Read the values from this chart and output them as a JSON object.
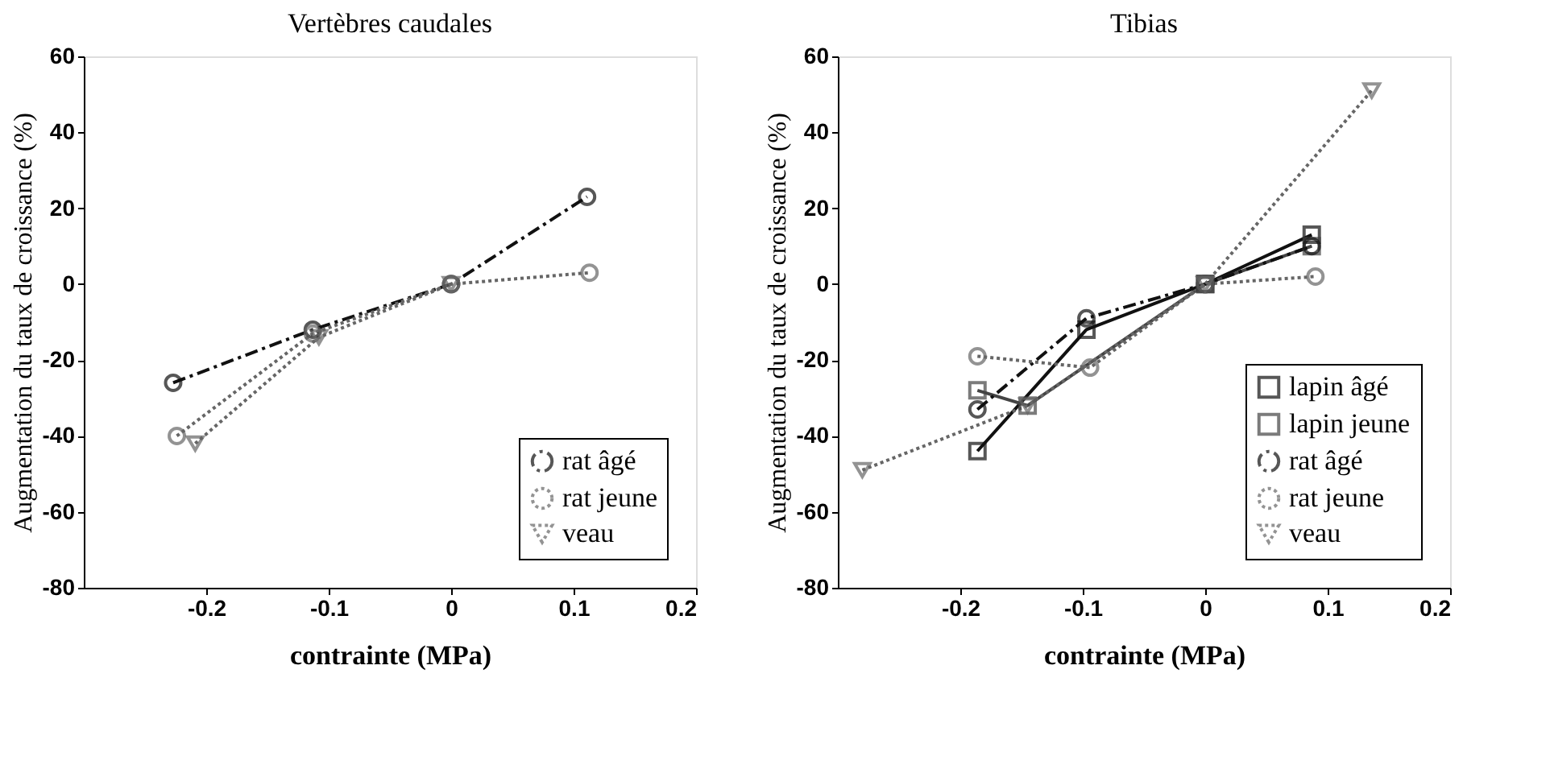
{
  "chart_data": [
    {
      "type": "line",
      "title": "Vertèbres caudales",
      "xlabel": "contrainte (MPa)",
      "ylabel": "Augmentation du taux de croissance (%)",
      "xlim": [
        -0.3,
        0.2
      ],
      "xticks": [
        {
          "value": -0.2,
          "label": "-0.2"
        },
        {
          "value": -0.1,
          "label": "-0.1"
        },
        0,
        {
          "value": 0.1,
          "label": "0.1"
        },
        {
          "value": 0.2,
          "label": "0.2"
        }
      ],
      "ylim": [
        -80,
        60
      ],
      "yticks": [
        -80,
        -60,
        -40,
        -20,
        0,
        20,
        40,
        60
      ],
      "grid": false,
      "legend": "bottom right",
      "series": [
        {
          "name": "rat âgé",
          "color": "#111111",
          "marker": "circle",
          "line_style": "dashed",
          "x": [
            -0.227,
            -0.113,
            0,
            0.111
          ],
          "values": [
            -26,
            -12,
            0,
            23
          ]
        },
        {
          "name": "rat jeune",
          "color": "#666666",
          "marker": "circle",
          "line_style": "dotted",
          "x": [
            -0.224,
            -0.113,
            0,
            0.113
          ],
          "values": [
            -40,
            -13,
            0,
            3
          ]
        },
        {
          "name": "veau",
          "color": "#666666",
          "marker": "triangle",
          "line_style": "dotted",
          "x": [
            -0.209,
            -0.108,
            0
          ],
          "values": [
            -42,
            -14,
            0
          ]
        }
      ]
    },
    {
      "type": "line",
      "title": "Tibias",
      "xlabel": "contrainte (MPa)",
      "ylabel": "Augmentation du taux de croissance (%)",
      "xlim": [
        -0.3,
        0.2
      ],
      "xticks": [
        {
          "value": -0.2,
          "label": "-0.2"
        },
        {
          "value": -0.1,
          "label": "-0.1"
        },
        0,
        {
          "value": 0.1,
          "label": "0.1"
        },
        {
          "value": 0.2,
          "label": "0.2"
        }
      ],
      "ylim": [
        -80,
        60
      ],
      "yticks": [
        -80,
        -60,
        -40,
        -20,
        0,
        20,
        40,
        60
      ],
      "grid": false,
      "legend": "bottom right",
      "series": [
        {
          "name": "lapin âgé",
          "color": "#111111",
          "marker": "square",
          "line_style": "solid",
          "x": [
            -0.186,
            -0.097,
            0,
            0.087
          ],
          "values": [
            -44,
            -12,
            0,
            13
          ]
        },
        {
          "name": "lapin jeune",
          "color": "#444444",
          "marker": "square",
          "line_style": "solid",
          "x": [
            -0.186,
            -0.145,
            0,
            0.087
          ],
          "values": [
            -28,
            -32,
            0,
            10
          ]
        },
        {
          "name": "rat âgé",
          "color": "#111111",
          "marker": "circle",
          "line_style": "dashed",
          "x": [
            -0.186,
            -0.097,
            0,
            0.087
          ],
          "values": [
            -33,
            -9,
            0,
            10
          ]
        },
        {
          "name": "rat jeune",
          "color": "#666666",
          "marker": "circle",
          "line_style": "dotted",
          "x": [
            -0.186,
            -0.094,
            0,
            0.09
          ],
          "values": [
            -19,
            -22,
            0,
            2
          ]
        },
        {
          "name": "veau",
          "color": "#666666",
          "marker": "triangle",
          "line_style": "dotted",
          "x": [
            -0.28,
            -0.145,
            0,
            0.136
          ],
          "values": [
            -49,
            -32,
            0,
            51
          ]
        }
      ]
    }
  ]
}
